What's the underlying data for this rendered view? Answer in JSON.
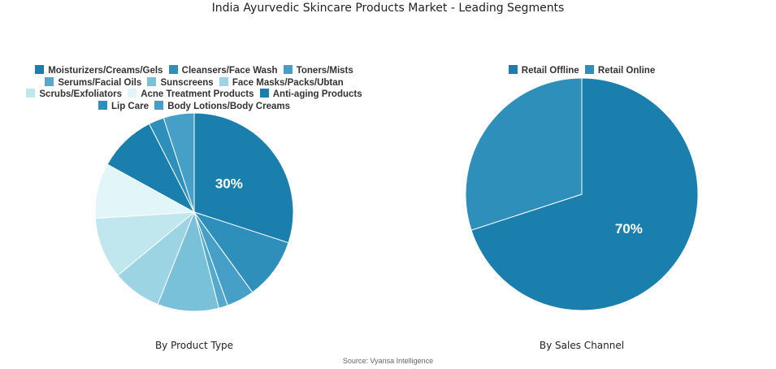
{
  "title": "India Ayurvedic Skincare Products Market - Leading Segments",
  "source": "Source: Vyansa Intelligence",
  "chart_data": [
    {
      "type": "pie",
      "subtitle": "By Product Type",
      "legend_position": "top",
      "categories": [
        "Moisturizers/Creams/Gels",
        "Cleansers/Face Wash",
        "Toners/Mists",
        "Serums/Facial Oils",
        "Sunscreens",
        "Face Masks/Packs/Ubtan",
        "Scrubs/Exfoliators",
        "Acne Treatment Products",
        "Anti-aging Products",
        "Lip Care",
        "Body Lotions/Body Creams"
      ],
      "values": [
        30,
        10,
        4.5,
        1.5,
        10,
        8,
        10,
        9,
        9.5,
        2.5,
        5
      ],
      "colors": [
        "#1b7fae",
        "#2e8fbb",
        "#459fc6",
        "#55a9cc",
        "#78c1d8",
        "#9dd4e3",
        "#c0e6ee",
        "#e2f5f8",
        "#1b7fae",
        "#2e8fbb",
        "#459fc6"
      ],
      "data_labels": [
        "30%",
        "",
        "",
        "",
        "",
        "",
        "",
        "",
        "",
        "",
        ""
      ]
    },
    {
      "type": "pie",
      "subtitle": "By Sales Channel",
      "legend_position": "top",
      "categories": [
        "Retail Offline",
        "Retail Online"
      ],
      "values": [
        70,
        30
      ],
      "colors": [
        "#1b7fae",
        "#2e8fbb"
      ],
      "data_labels": [
        "70%",
        ""
      ]
    }
  ]
}
